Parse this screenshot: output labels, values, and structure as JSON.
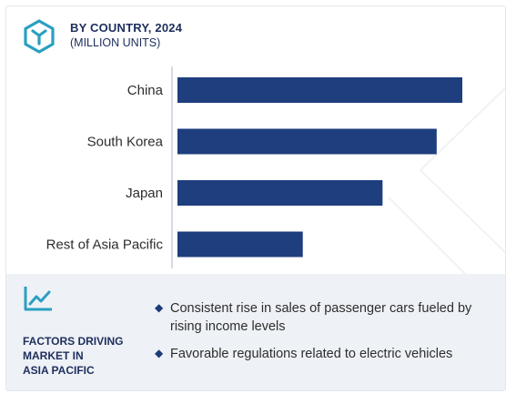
{
  "header": {
    "title": "BY COUNTRY, 2024",
    "subtitle": "(MILLION UNITS)",
    "logo_icon": "hexagon-cube-icon"
  },
  "chart_data": {
    "type": "bar",
    "orientation": "horizontal",
    "categories": [
      "China",
      "South Korea",
      "Japan",
      "Rest of Asia Pacific"
    ],
    "values": [
      100,
      91,
      72,
      44
    ],
    "title": "BY COUNTRY, 2024",
    "subtitle": "(MILLION UNITS)",
    "xlim": [
      0,
      100
    ],
    "grid": false,
    "bar_color": "#1e3e7e"
  },
  "factors": {
    "icon": "trend-line-chart-icon",
    "title_lines": [
      "FACTORS DRIVING",
      "MARKET IN",
      "ASIA PACIFIC"
    ],
    "items": [
      "Consistent rise in sales of passenger cars fueled by rising income levels",
      "Favorable regulations related to electric vehicles"
    ]
  },
  "colors": {
    "accent": "#2a9fc1",
    "navy": "#1d2e5c",
    "bar": "#1e3e7e",
    "panel_bg": "#eef1f6"
  }
}
